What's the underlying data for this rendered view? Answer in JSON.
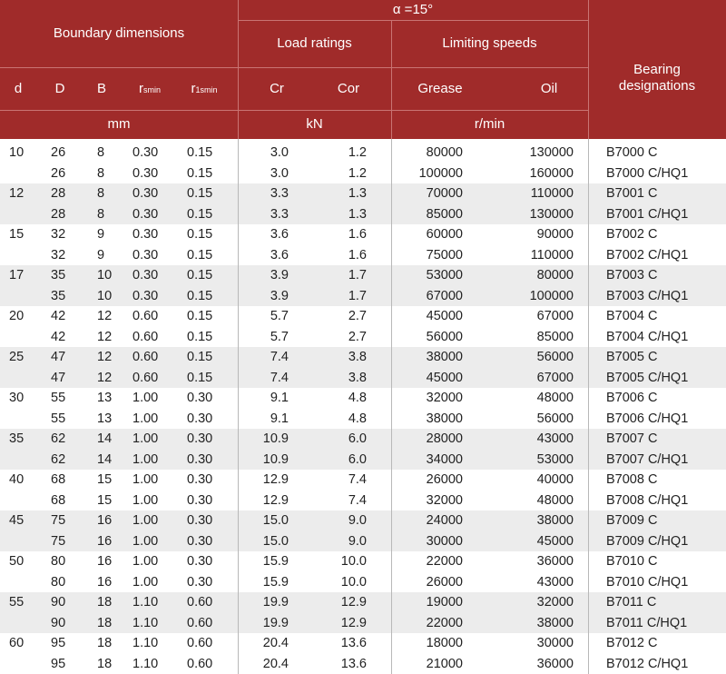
{
  "header": {
    "angle_label": "α =15°",
    "boundary_dimensions": "Boundary dimensions",
    "load_ratings": "Load ratings",
    "limiting_speeds": "Limiting speeds",
    "bearing_designations": "Bearing designations",
    "col_d": "d",
    "col_D": "D",
    "col_B": "B",
    "col_rsmin_main": "r",
    "col_rsmin_sub": "smin",
    "col_r1smin_main": "r",
    "col_r1smin_sub": "1smin",
    "col_cr": "Cr",
    "col_cor": "Cor",
    "col_grease": "Grease",
    "col_oil": "Oil",
    "unit_mm": "mm",
    "unit_kn": "kN",
    "unit_rmin": "r/min"
  },
  "rows": [
    {
      "d": "10",
      "D": "26",
      "B": "8",
      "rsmin": "0.30",
      "r1smin": "0.15",
      "cr": "3.0",
      "cor": "1.2",
      "grease": "80000",
      "oil": "130000",
      "designation": "B7000 C"
    },
    {
      "d": "",
      "D": "26",
      "B": "8",
      "rsmin": "0.30",
      "r1smin": "0.15",
      "cr": "3.0",
      "cor": "1.2",
      "grease": "100000",
      "oil": "160000",
      "designation": "B7000  C/HQ1"
    },
    {
      "d": "12",
      "D": "28",
      "B": "8",
      "rsmin": "0.30",
      "r1smin": "0.15",
      "cr": "3.3",
      "cor": "1.3",
      "grease": "70000",
      "oil": "110000",
      "designation": "B7001 C"
    },
    {
      "d": "",
      "D": "28",
      "B": "8",
      "rsmin": "0.30",
      "r1smin": "0.15",
      "cr": "3.3",
      "cor": "1.3",
      "grease": "85000",
      "oil": "130000",
      "designation": "B7001  C/HQ1"
    },
    {
      "d": "15",
      "D": "32",
      "B": "9",
      "rsmin": "0.30",
      "r1smin": "0.15",
      "cr": "3.6",
      "cor": "1.6",
      "grease": "60000",
      "oil": "90000",
      "designation": "B7002 C"
    },
    {
      "d": "",
      "D": "32",
      "B": "9",
      "rsmin": "0.30",
      "r1smin": "0.15",
      "cr": "3.6",
      "cor": "1.6",
      "grease": "75000",
      "oil": "110000",
      "designation": "B7002  C/HQ1"
    },
    {
      "d": "17",
      "D": "35",
      "B": "10",
      "rsmin": "0.30",
      "r1smin": "0.15",
      "cr": "3.9",
      "cor": "1.7",
      "grease": "53000",
      "oil": "80000",
      "designation": "B7003 C"
    },
    {
      "d": "",
      "D": "35",
      "B": "10",
      "rsmin": "0.30",
      "r1smin": "0.15",
      "cr": "3.9",
      "cor": "1.7",
      "grease": "67000",
      "oil": "100000",
      "designation": "B7003  C/HQ1"
    },
    {
      "d": "20",
      "D": "42",
      "B": "12",
      "rsmin": "0.60",
      "r1smin": "0.15",
      "cr": "5.7",
      "cor": "2.7",
      "grease": "45000",
      "oil": "67000",
      "designation": "B7004 C"
    },
    {
      "d": "",
      "D": "42",
      "B": "12",
      "rsmin": "0.60",
      "r1smin": "0.15",
      "cr": "5.7",
      "cor": "2.7",
      "grease": "56000",
      "oil": "85000",
      "designation": "B7004  C/HQ1"
    },
    {
      "d": "25",
      "D": "47",
      "B": "12",
      "rsmin": "0.60",
      "r1smin": "0.15",
      "cr": "7.4",
      "cor": "3.8",
      "grease": "38000",
      "oil": "56000",
      "designation": "B7005 C"
    },
    {
      "d": "",
      "D": "47",
      "B": "12",
      "rsmin": "0.60",
      "r1smin": "0.15",
      "cr": "7.4",
      "cor": "3.8",
      "grease": "45000",
      "oil": "67000",
      "designation": "B7005  C/HQ1"
    },
    {
      "d": "30",
      "D": "55",
      "B": "13",
      "rsmin": "1.00",
      "r1smin": "0.30",
      "cr": "9.1",
      "cor": "4.8",
      "grease": "32000",
      "oil": "48000",
      "designation": "B7006 C"
    },
    {
      "d": "",
      "D": "55",
      "B": "13",
      "rsmin": "1.00",
      "r1smin": "0.30",
      "cr": "9.1",
      "cor": "4.8",
      "grease": "38000",
      "oil": "56000",
      "designation": "B7006  C/HQ1"
    },
    {
      "d": "35",
      "D": "62",
      "B": "14",
      "rsmin": "1.00",
      "r1smin": "0.30",
      "cr": "10.9",
      "cor": "6.0",
      "grease": "28000",
      "oil": "43000",
      "designation": "B7007 C"
    },
    {
      "d": "",
      "D": "62",
      "B": "14",
      "rsmin": "1.00",
      "r1smin": "0.30",
      "cr": "10.9",
      "cor": "6.0",
      "grease": "34000",
      "oil": "53000",
      "designation": "B7007  C/HQ1"
    },
    {
      "d": "40",
      "D": "68",
      "B": "15",
      "rsmin": "1.00",
      "r1smin": "0.30",
      "cr": "12.9",
      "cor": "7.4",
      "grease": "26000",
      "oil": "40000",
      "designation": "B7008 C"
    },
    {
      "d": "",
      "D": "68",
      "B": "15",
      "rsmin": "1.00",
      "r1smin": "0.30",
      "cr": "12.9",
      "cor": "7.4",
      "grease": "32000",
      "oil": "48000",
      "designation": "B7008  C/HQ1"
    },
    {
      "d": "45",
      "D": "75",
      "B": "16",
      "rsmin": "1.00",
      "r1smin": "0.30",
      "cr": "15.0",
      "cor": "9.0",
      "grease": "24000",
      "oil": "38000",
      "designation": "B7009 C"
    },
    {
      "d": "",
      "D": "75",
      "B": "16",
      "rsmin": "1.00",
      "r1smin": "0.30",
      "cr": "15.0",
      "cor": "9.0",
      "grease": "30000",
      "oil": "45000",
      "designation": "B7009  C/HQ1"
    },
    {
      "d": "50",
      "D": "80",
      "B": "16",
      "rsmin": "1.00",
      "r1smin": "0.30",
      "cr": "15.9",
      "cor": "10.0",
      "grease": "22000",
      "oil": "36000",
      "designation": "B7010 C"
    },
    {
      "d": "",
      "D": "80",
      "B": "16",
      "rsmin": "1.00",
      "r1smin": "0.30",
      "cr": "15.9",
      "cor": "10.0",
      "grease": "26000",
      "oil": "43000",
      "designation": "B7010  C/HQ1"
    },
    {
      "d": "55",
      "D": "90",
      "B": "18",
      "rsmin": "1.10",
      "r1smin": "0.60",
      "cr": "19.9",
      "cor": "12.9",
      "grease": "19000",
      "oil": "32000",
      "designation": "B7011 C"
    },
    {
      "d": "",
      "D": "90",
      "B": "18",
      "rsmin": "1.10",
      "r1smin": "0.60",
      "cr": "19.9",
      "cor": "12.9",
      "grease": "22000",
      "oil": "38000",
      "designation": "B7011  C/HQ1"
    },
    {
      "d": "60",
      "D": "95",
      "B": "18",
      "rsmin": "1.10",
      "r1smin": "0.60",
      "cr": "20.4",
      "cor": "13.6",
      "grease": "18000",
      "oil": "30000",
      "designation": "B7012 C"
    },
    {
      "d": "",
      "D": "95",
      "B": "18",
      "rsmin": "1.10",
      "r1smin": "0.60",
      "cr": "20.4",
      "cor": "13.6",
      "grease": "21000",
      "oil": "36000",
      "designation": "B7012  C/HQ1"
    }
  ],
  "colors": {
    "header_bg": "#a02b2a",
    "header_text": "#ffffff",
    "shade_row": "#ececec",
    "body_text": "#222222"
  }
}
